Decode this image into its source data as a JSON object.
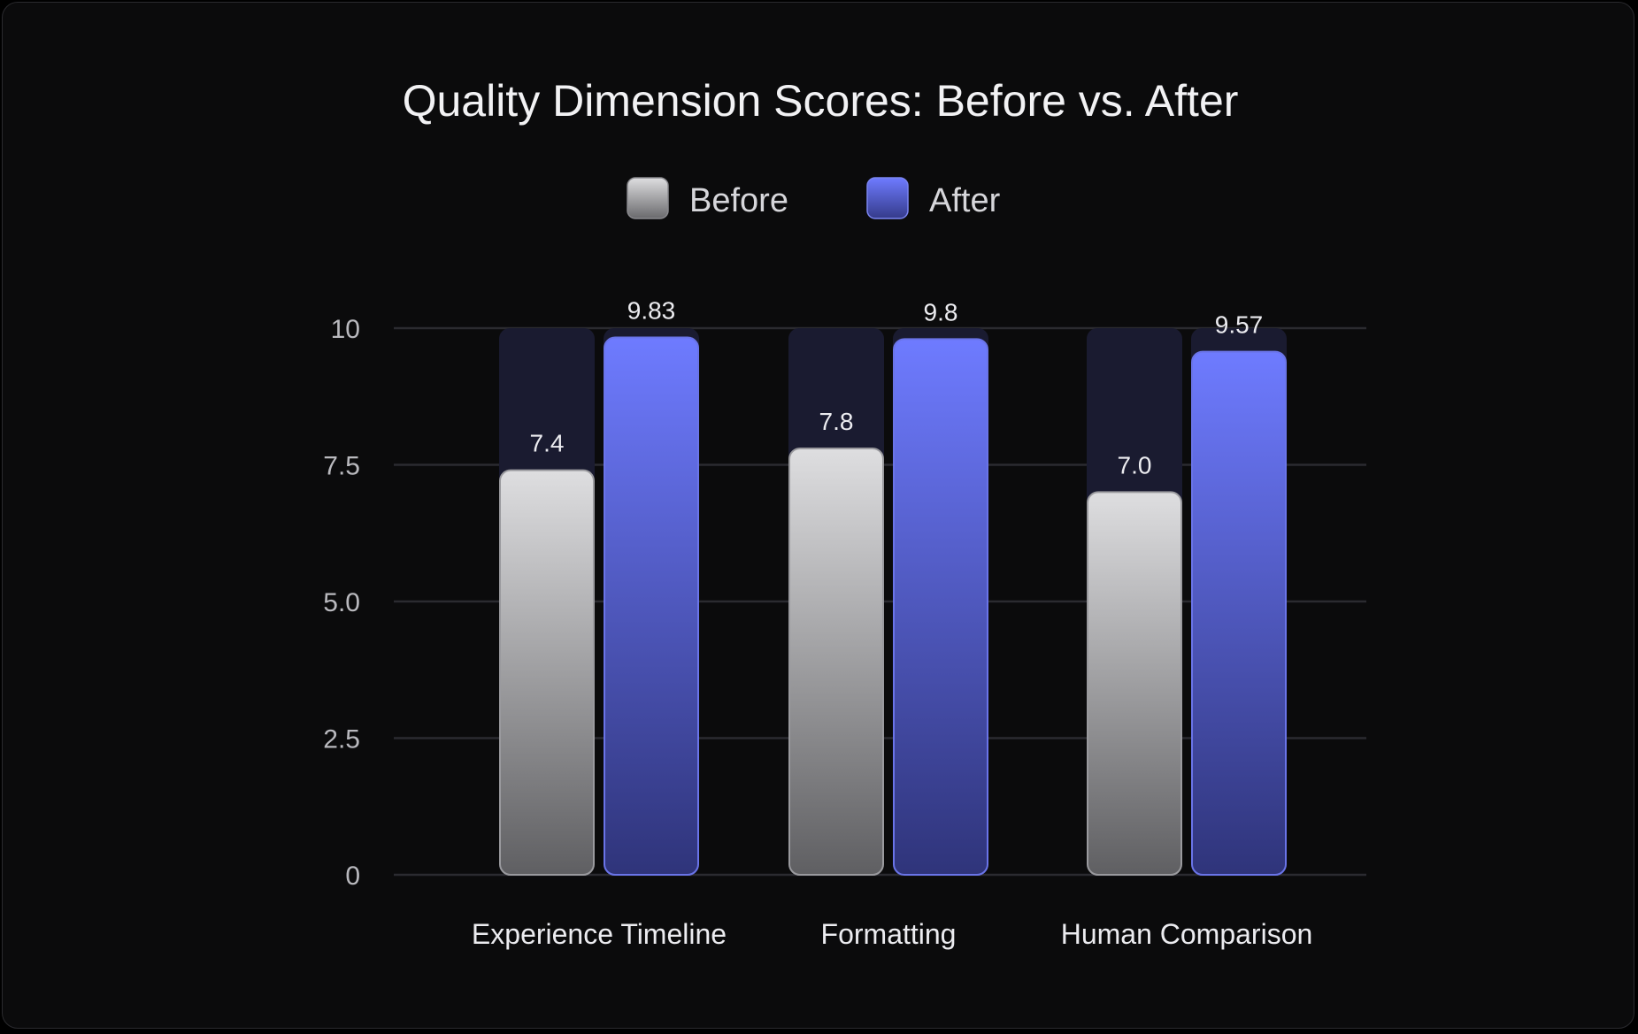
{
  "chart_data": {
    "type": "bar",
    "title": "Quality Dimension Scores: Before vs. After",
    "categories": [
      "Experience Timeline",
      "Formatting",
      "Human Comparison"
    ],
    "series": [
      {
        "name": "Before",
        "values": [
          7.4,
          7.8,
          7.0
        ],
        "value_labels": [
          "7.4",
          "7.8",
          "7.0"
        ],
        "color": "#a9a9ad"
      },
      {
        "name": "After",
        "values": [
          9.83,
          9.8,
          9.57
        ],
        "value_labels": [
          "9.83",
          "9.8",
          "9.57"
        ],
        "color": "#5a66e0"
      }
    ],
    "yticks": [
      0,
      2.5,
      5.0,
      7.5,
      10
    ],
    "ytick_labels": [
      "0",
      "2.5",
      "5.0",
      "7.5",
      "10"
    ],
    "ylim": [
      0,
      10
    ],
    "grid": true,
    "legend_position": "top-center",
    "xlabel": "",
    "ylabel": ""
  }
}
